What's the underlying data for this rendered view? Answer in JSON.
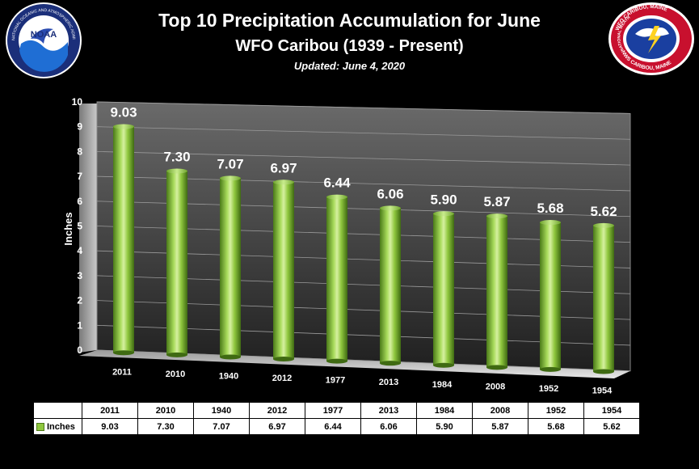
{
  "header": {
    "title": "Top 10 Precipitation Accumulation for June",
    "subtitle": "WFO Caribou (1939 - Present)",
    "updated": "Updated:  June 4, 2020"
  },
  "logos": {
    "noaa": "NOAA",
    "noaa_ring": "NATIONAL OCEANIC AND ATMOSPHERIC ADMINISTRATION · U.S. DEPARTMENT OF COMMERCE",
    "nws_top": "WFO CARIBOU, MAINE",
    "nws_ring": "NATIONAL WEATHER SERVICE",
    "nws_bottom": "NWS CARIBOU, MAINE"
  },
  "chart_data": {
    "type": "bar",
    "title": "Top 10 Precipitation Accumulation for June",
    "subtitle": "WFO Caribou (1939 - Present)",
    "ylabel": "Inches",
    "xlabel": "",
    "ylim": [
      0,
      10
    ],
    "yticks": [
      "0",
      "1",
      "2",
      "3",
      "4",
      "5",
      "6",
      "7",
      "8",
      "9",
      "10"
    ],
    "categories": [
      "2011",
      "2010",
      "1940",
      "2012",
      "1977",
      "2013",
      "1984",
      "2008",
      "1952",
      "1954"
    ],
    "series": [
      {
        "name": "Inches",
        "values": [
          9.03,
          7.3,
          7.07,
          6.97,
          6.44,
          6.06,
          5.9,
          5.87,
          5.68,
          5.62
        ],
        "labels": [
          "9.03",
          "7.30",
          "7.07",
          "6.97",
          "6.44",
          "6.06",
          "5.90",
          "5.87",
          "5.68",
          "5.62"
        ]
      }
    ],
    "grid": true,
    "legend": "data-table",
    "colors": {
      "bar": "#8fc73e",
      "bar_dark": "#4a7a18",
      "bar_light": "#d6f0a0",
      "background": "#000000"
    }
  }
}
